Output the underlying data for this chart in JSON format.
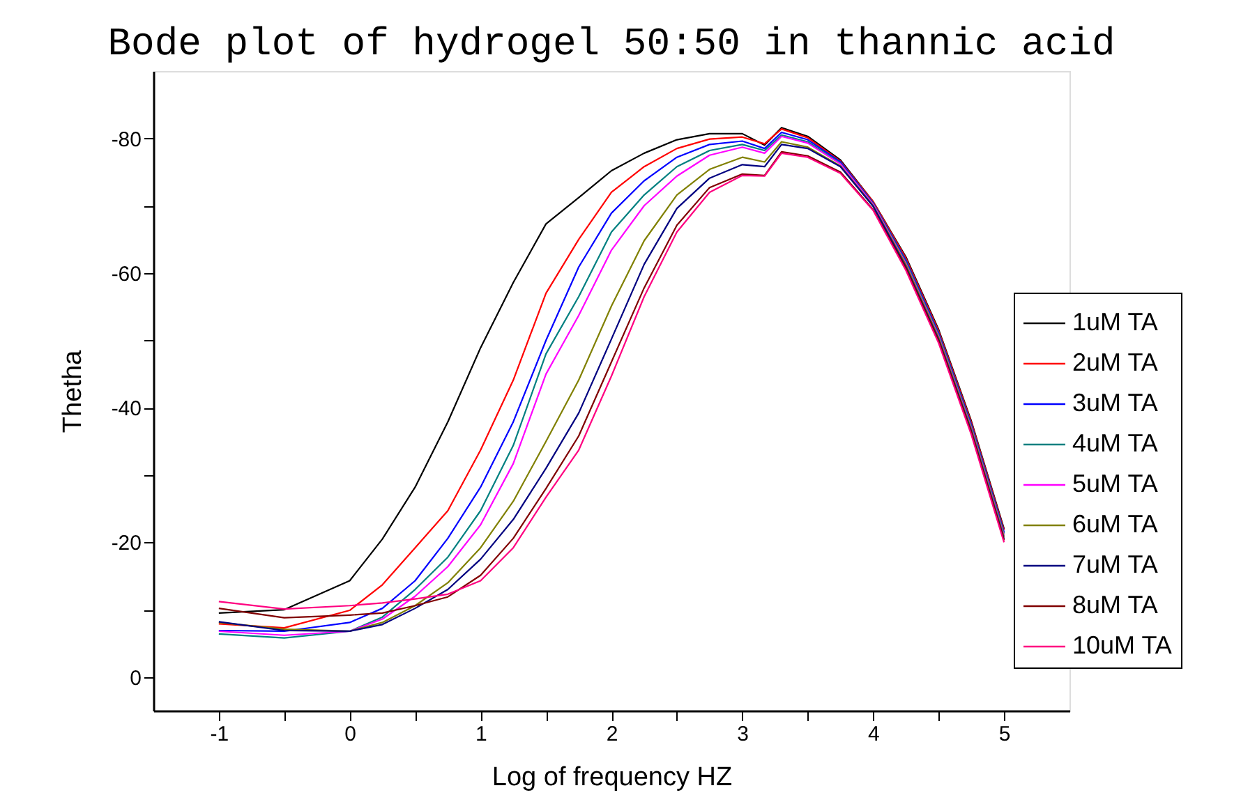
{
  "chart_data": {
    "type": "line",
    "title": "Bode plot of hydrogel 50:50 in thannic acid",
    "xlabel": "Log of frequency HZ",
    "ylabel": "Thetha",
    "xlim": [
      -1.5,
      5.5
    ],
    "ylim": [
      5,
      -90
    ],
    "xticks": [
      -1,
      {
        "value": -0.5,
        "label": null
      },
      0,
      {
        "value": 0.5,
        "label": null
      },
      1,
      {
        "value": 1.5,
        "label": null
      },
      2,
      {
        "value": 2.5,
        "label": null
      },
      3,
      {
        "value": 3.5,
        "label": null
      },
      4,
      {
        "value": 4.5,
        "label": null
      },
      5
    ],
    "yticks": [
      -80,
      {
        "value": -70,
        "label": null
      },
      -60,
      {
        "value": -50,
        "label": null
      },
      -40,
      {
        "value": -30,
        "label": null
      },
      -20,
      {
        "value": -10,
        "label": null
      },
      0
    ],
    "grid": false,
    "legend": "right",
    "line_style": "solid",
    "x": [
      -1,
      -0.5,
      0,
      0.25,
      0.5,
      0.75,
      1,
      1.25,
      1.5,
      1.75,
      2,
      2.25,
      2.5,
      2.75,
      3,
      3.17,
      3.3,
      3.5,
      3.75,
      4,
      4.25,
      4.5,
      4.75,
      5
    ],
    "series": [
      {
        "name": "1uM TA",
        "color": "#000000",
        "values": [
          -9.5,
          -10,
          -14.3,
          -20.5,
          -28.2,
          -37.9,
          -48.9,
          -58.6,
          -67.3,
          -71.2,
          -75.2,
          -77.8,
          -79.8,
          -80.7,
          -80.7,
          -79.0,
          -81.6,
          -80.3,
          -76.8,
          -70.6,
          -62.4,
          -51.6,
          -38.0,
          -22.0
        ]
      },
      {
        "name": "2uM TA",
        "color": "#ff0000",
        "values": [
          -7.9,
          -7.3,
          -9.9,
          -13.7,
          -19.2,
          -24.7,
          -33.7,
          -44.1,
          -57,
          -65,
          -72,
          -75.8,
          -78.5,
          -79.9,
          -80.2,
          -79.2,
          -81.4,
          -80.1,
          -76.6,
          -70.6,
          -62.2,
          -51.4,
          -37.8,
          -21.8
        ]
      },
      {
        "name": "3uM TA",
        "color": "#0000ff",
        "values": [
          -6.9,
          -6.8,
          -8.1,
          -10.2,
          -14.3,
          -20.6,
          -28.2,
          -37.9,
          -50,
          -60.9,
          -68.9,
          -73.7,
          -77.2,
          -79.1,
          -79.6,
          -78.5,
          -80.9,
          -79.8,
          -76.5,
          -70.4,
          -61.9,
          -51.1,
          -37.5,
          -21.5
        ]
      },
      {
        "name": "4uM TA",
        "color": "#008080",
        "values": [
          -6.4,
          -5.8,
          -6.8,
          -8.9,
          -13,
          -17.8,
          -24.7,
          -34.4,
          -48,
          -56.5,
          -66.1,
          -71.6,
          -75.8,
          -78.2,
          -79.1,
          -78.2,
          -80.5,
          -79.5,
          -76.3,
          -70.3,
          -61.7,
          -50.9,
          -37.3,
          -21.3
        ]
      },
      {
        "name": "5uM TA",
        "color": "#ff00ff",
        "values": [
          -6.8,
          -6.2,
          -6.8,
          -8.6,
          -12,
          -16.4,
          -22.6,
          -31.7,
          -45,
          -53.7,
          -63.4,
          -70,
          -74.4,
          -77.5,
          -78.7,
          -77.8,
          -80.3,
          -79.3,
          -76.2,
          -70.2,
          -61.4,
          -50.6,
          -37.0,
          -21.0
        ]
      },
      {
        "name": "6uM TA",
        "color": "#808000",
        "values": [
          -8.1,
          -7.1,
          -6.8,
          -8.1,
          -10.6,
          -14.0,
          -19.2,
          -26.1,
          -35,
          -44.1,
          -55.1,
          -64.8,
          -71.6,
          -75.4,
          -77.2,
          -76.5,
          -79.5,
          -78.7,
          -75.9,
          -70.0,
          -61.2,
          -50.4,
          -36.8,
          -20.8
        ]
      },
      {
        "name": "7uM TA",
        "color": "#000080",
        "values": [
          -8.2,
          -6.9,
          -6.8,
          -7.8,
          -10.2,
          -13.0,
          -17.5,
          -23.4,
          -31,
          -39.2,
          -50.2,
          -61.3,
          -69.6,
          -74.1,
          -76.1,
          -75.8,
          -79.1,
          -78.5,
          -75.8,
          -69.9,
          -60.9,
          -50.1,
          -36.5,
          -20.5
        ]
      },
      {
        "name": "8uM TA",
        "color": "#800000",
        "values": [
          -10.2,
          -8.8,
          -9.2,
          -9.5,
          -10.6,
          -11.9,
          -15.1,
          -20.6,
          -28,
          -35.8,
          -46.8,
          -57.8,
          -67.1,
          -72.7,
          -74.7,
          -74.5,
          -78,
          -77.4,
          -75.0,
          -69.4,
          -60.7,
          -49.9,
          -36.3,
          -20.3
        ]
      },
      {
        "name": "10uM TA",
        "color": "#ff0080",
        "values": [
          -11.2,
          -10.1,
          -10.6,
          -11,
          -11.6,
          -12.3,
          -14.3,
          -19.2,
          -26.7,
          -33.7,
          -44.7,
          -56.5,
          -66.1,
          -72,
          -74.5,
          -74.4,
          -77.8,
          -77.2,
          -74.8,
          -69.3,
          -60.4,
          -49.6,
          -36.0,
          -20.0
        ]
      }
    ]
  }
}
